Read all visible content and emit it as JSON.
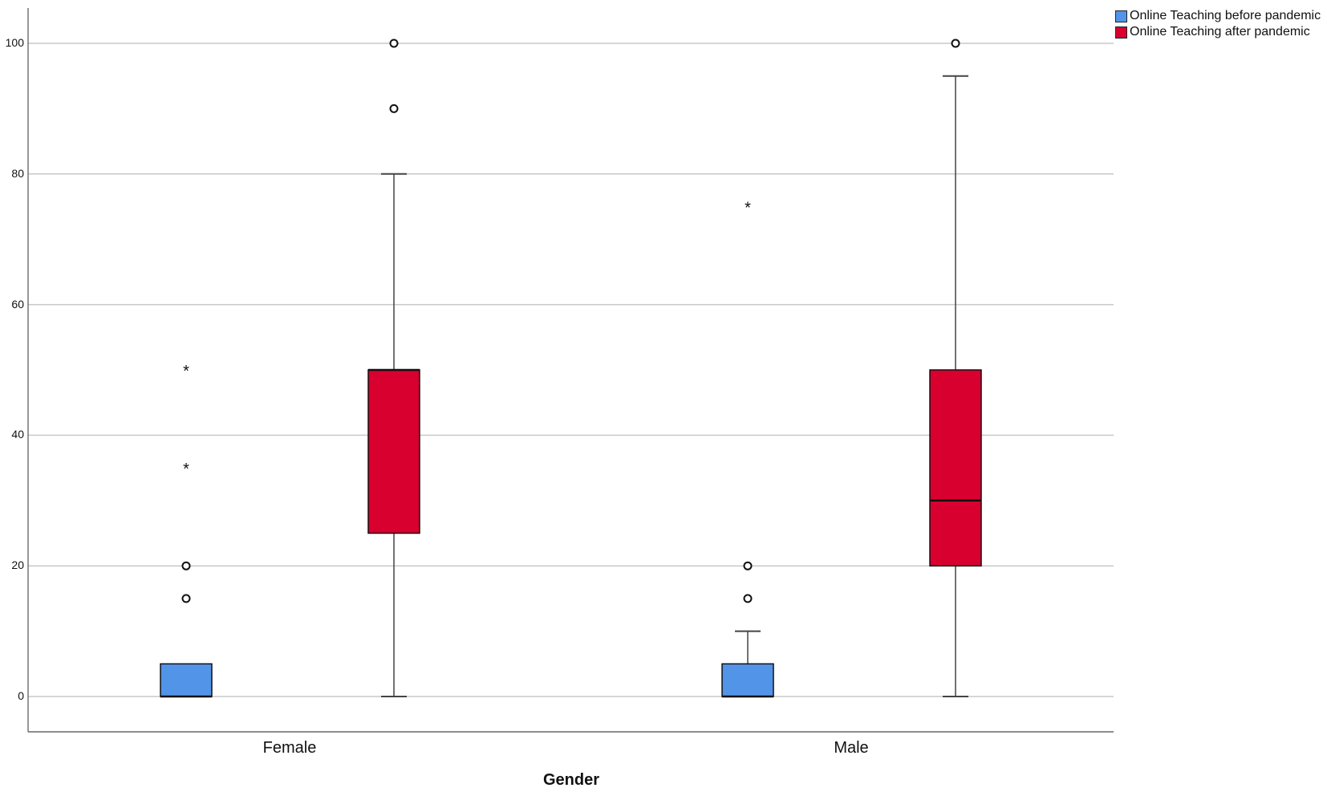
{
  "chart_data": {
    "type": "boxplot",
    "title": "",
    "xlabel": "Gender",
    "ylabel": "",
    "ylim": [
      -5.5,
      106
    ],
    "yticks": [
      0,
      20,
      40,
      60,
      80,
      100
    ],
    "grid": true,
    "legend_position": "top-right",
    "categories": [
      "Female",
      "Male"
    ],
    "series": [
      {
        "name": "Online Teaching before pandemic",
        "color": "#5294e8",
        "boxes": [
          {
            "category": "Female",
            "min": 0,
            "q1": 0,
            "median": 0,
            "q3": 5,
            "max": 5,
            "outliers": [
              20,
              15
            ],
            "extremes": [
              50,
              35
            ]
          },
          {
            "category": "Male",
            "min": 0,
            "q1": 0,
            "median": 0,
            "q3": 5,
            "max": 10,
            "outliers": [
              20,
              15
            ],
            "extremes": [
              75
            ]
          }
        ]
      },
      {
        "name": "Online Teaching after pandemic",
        "color": "#d7002f",
        "boxes": [
          {
            "category": "Female",
            "min": 0,
            "q1": 25,
            "median": 50,
            "q3": 50,
            "max": 80,
            "outliers": [
              100,
              90
            ],
            "extremes": []
          },
          {
            "category": "Male",
            "min": 0,
            "q1": 20,
            "median": 30,
            "q3": 50,
            "max": 95,
            "outliers": [
              100
            ],
            "extremes": []
          }
        ]
      }
    ]
  },
  "legend": {
    "items": [
      {
        "label": "Online Teaching before pandemic",
        "color": "#5294e8"
      },
      {
        "label": "Online Teaching after pandemic",
        "color": "#d7002f"
      }
    ]
  },
  "axis": {
    "x_title": "Gender",
    "x_labels": [
      "Female",
      "Male"
    ],
    "y_labels": [
      "0",
      "20",
      "40",
      "60",
      "80",
      "100"
    ]
  }
}
